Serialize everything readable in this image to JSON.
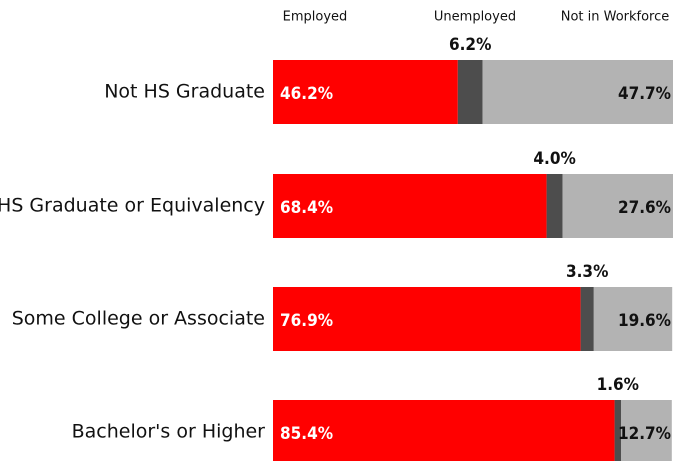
{
  "chart_data": {
    "type": "stacked-bar-horizontal",
    "categories": [
      "Not HS Graduate",
      "HS Graduate or Equivalency",
      "Some College or Associate",
      "Bachelor's or Higher"
    ],
    "series": [
      {
        "name": "Employed",
        "color": "#ff0000",
        "values": [
          46.2,
          68.4,
          76.9,
          85.4
        ],
        "value_labels": [
          "46.2%",
          "68.4%",
          "76.9%",
          "85.4%"
        ]
      },
      {
        "name": "Unemployed",
        "color": "#4d4d4d",
        "values": [
          6.2,
          4.0,
          3.3,
          1.6
        ],
        "value_labels": [
          "6.2%",
          "4.0%",
          "3.3%",
          "1.6%"
        ]
      },
      {
        "name": "Not in Workforce",
        "color": "#b3b3b3",
        "values": [
          47.7,
          27.6,
          19.6,
          12.7
        ],
        "value_labels": [
          "47.7%",
          "27.6%",
          "19.6%",
          "12.7%"
        ]
      }
    ],
    "xlim": [
      0,
      100
    ]
  }
}
